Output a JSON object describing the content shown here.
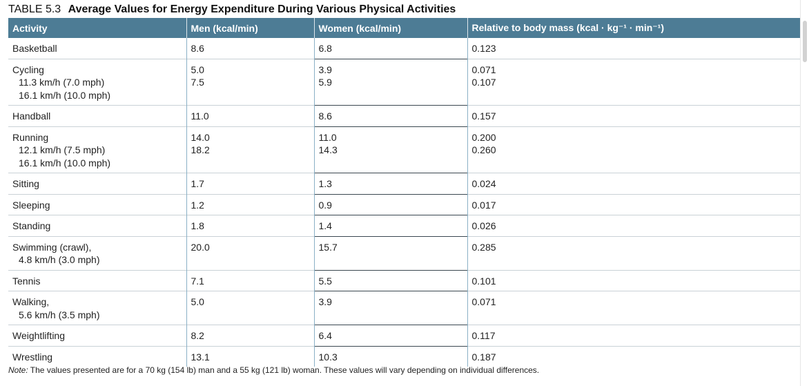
{
  "table": {
    "number": "TABLE 5.3",
    "title": "Average Values for Energy Expenditure During Various Physical Activities",
    "headers": [
      "Activity",
      "Men (kcal/min)",
      "Women (kcal/min)",
      "Relative to body mass (kcal · kg⁻¹ · min⁻¹)"
    ],
    "rows": [
      {
        "activity": [
          "Basketball"
        ],
        "men": [
          "8.6"
        ],
        "women": [
          "6.8"
        ],
        "relative": [
          "0.123"
        ]
      },
      {
        "activity": [
          "Cycling",
          "11.3 km/h (7.0 mph)",
          "16.1 km/h (10.0 mph)"
        ],
        "men": [
          "5.0",
          "7.5"
        ],
        "women": [
          "3.9",
          "5.9"
        ],
        "relative": [
          "0.071",
          "0.107"
        ]
      },
      {
        "activity": [
          "Handball"
        ],
        "men": [
          "11.0"
        ],
        "women": [
          "8.6"
        ],
        "relative": [
          "0.157"
        ]
      },
      {
        "activity": [
          "Running",
          "12.1 km/h (7.5 mph)",
          "16.1 km/h (10.0 mph)"
        ],
        "men": [
          "14.0",
          "18.2"
        ],
        "women": [
          "11.0",
          "14.3"
        ],
        "relative": [
          "0.200",
          "0.260"
        ]
      },
      {
        "activity": [
          "Sitting"
        ],
        "men": [
          "1.7"
        ],
        "women": [
          "1.3"
        ],
        "relative": [
          "0.024"
        ]
      },
      {
        "activity": [
          "Sleeping"
        ],
        "men": [
          "1.2"
        ],
        "women": [
          "0.9"
        ],
        "relative": [
          "0.017"
        ]
      },
      {
        "activity": [
          "Standing"
        ],
        "men": [
          "1.8"
        ],
        "women": [
          "1.4"
        ],
        "relative": [
          "0.026"
        ]
      },
      {
        "activity": [
          "Swimming (crawl),",
          "4.8 km/h (3.0 mph)"
        ],
        "men": [
          "20.0"
        ],
        "women": [
          "15.7"
        ],
        "relative": [
          "0.285"
        ]
      },
      {
        "activity": [
          "Tennis"
        ],
        "men": [
          "7.1"
        ],
        "women": [
          "5.5"
        ],
        "relative": [
          "0.101"
        ]
      },
      {
        "activity": [
          "Walking,",
          "5.6 km/h (3.5 mph)"
        ],
        "men": [
          "5.0"
        ],
        "women": [
          "3.9"
        ],
        "relative": [
          "0.071"
        ]
      },
      {
        "activity": [
          "Weightlifting"
        ],
        "men": [
          "8.2"
        ],
        "women": [
          "6.4"
        ],
        "relative": [
          "0.117"
        ]
      },
      {
        "activity": [
          "Wrestling"
        ],
        "men": [
          "13.1"
        ],
        "women": [
          "10.3"
        ],
        "relative": [
          "0.187"
        ]
      }
    ],
    "note_label": "Note:",
    "note_text": " The values presented are for a 70 kg (154 lb) man and a 55 kg (121 lb) woman. These values will vary depending on individual differences."
  },
  "colors": {
    "header_bg": "#4d7c95",
    "header_text": "#ffffff"
  }
}
